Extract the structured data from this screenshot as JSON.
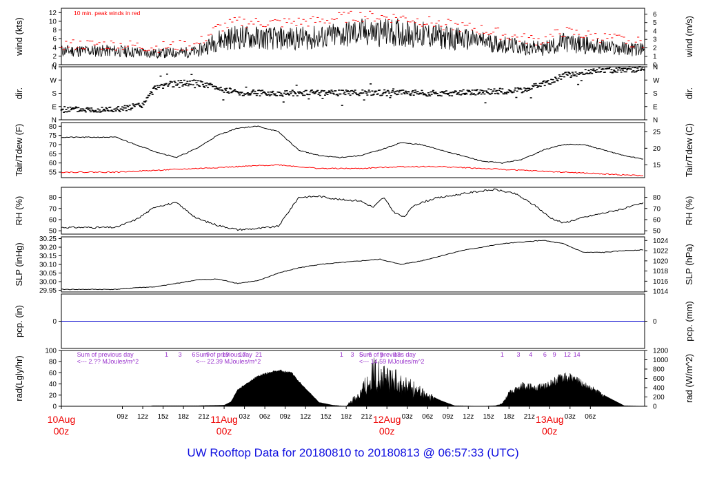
{
  "footer": "UW Rooftop Data for 20180810  to  20180813 @ 06:57:33  (UTC)",
  "colors": {
    "wind": "#000000",
    "peak": "#ff0000",
    "tdew": "#ff0000",
    "pcp": "#0000cc",
    "note": "#9933cc",
    "date": "#ee0000"
  },
  "chart_data": [
    {
      "type": "line",
      "ylabel": "wind (kts)",
      "ylabel_right": "wind (m/s)",
      "annotation": "10 min. peak winds in red",
      "ylim": [
        0,
        13
      ],
      "yticks": [
        0,
        2,
        4,
        6,
        8,
        10,
        12
      ],
      "yticks_right": [
        0,
        1,
        2,
        3,
        4,
        5,
        6
      ],
      "series": [
        {
          "name": "wind",
          "x": [
            0,
            6,
            12,
            15,
            18,
            24,
            30,
            33,
            36,
            42,
            48,
            54,
            60,
            63,
            66,
            72,
            78
          ],
          "values": [
            3.2,
            2.6,
            3.0,
            5.6,
            6.4,
            6.0,
            6.2,
            6.8,
            7.4,
            7.4,
            6.4,
            5.4,
            4.0,
            3.7,
            5.1,
            4.0,
            3.4
          ]
        },
        {
          "name": "10 min. peak winds",
          "x": [
            0,
            6,
            12,
            15,
            18,
            24,
            30,
            33,
            36,
            42,
            48,
            54,
            60,
            63,
            66,
            72,
            78
          ],
          "values": [
            4.6,
            4.0,
            4.6,
            8.4,
            9.8,
            9.6,
            10.0,
            10.8,
            11.2,
            10.8,
            9.4,
            8.0,
            6.0,
            5.6,
            7.6,
            6.2,
            5.0
          ]
        }
      ]
    },
    {
      "type": "scatter",
      "ylabel": "dir.",
      "ylabel_right": "dir.",
      "yticks": [
        "N",
        "W",
        "S",
        "E",
        "N"
      ],
      "series": [
        {
          "name": "direction (deg)",
          "x": [
            0,
            2,
            4,
            6,
            8,
            10,
            12,
            18,
            24,
            36,
            48,
            60,
            62,
            64,
            66,
            70,
            74,
            78
          ],
          "values": [
            70,
            85,
            100,
            225,
            240,
            250,
            250,
            185,
            180,
            185,
            180,
            200,
            230,
            260,
            300,
            330,
            340,
            345
          ]
        }
      ]
    },
    {
      "type": "line",
      "ylabel": "Tair/Tdew (F)",
      "ylabel_right": "Tair/Tdew (C)",
      "ylim": [
        52,
        82
      ],
      "yticks": [
        55,
        60,
        65,
        70,
        75,
        80
      ],
      "yticks_right": [
        15,
        20,
        25
      ],
      "series": [
        {
          "name": "Tair",
          "x": [
            0,
            3,
            6,
            9,
            12,
            15,
            18,
            21,
            24,
            27,
            30,
            33,
            36,
            39,
            42,
            45,
            48,
            51,
            54,
            57,
            60,
            63,
            66,
            69,
            72,
            75,
            78
          ],
          "values": [
            74,
            70,
            66,
            63,
            68,
            75,
            79,
            80,
            77,
            67,
            64,
            63,
            64,
            67,
            71,
            70,
            67,
            64,
            61,
            60,
            62,
            67,
            70,
            70,
            67,
            64,
            62
          ]
        },
        {
          "name": "Tdew",
          "x": [
            0,
            6,
            12,
            18,
            24,
            30,
            36,
            42,
            48,
            54,
            60,
            66,
            72,
            78
          ],
          "values": [
            55,
            56,
            57,
            58,
            59,
            57,
            57,
            58,
            58,
            57,
            56,
            55,
            54,
            53
          ]
        }
      ]
    },
    {
      "type": "line",
      "ylabel": "RH (%)",
      "ylabel_right": "RH (%)",
      "ylim": [
        47,
        89
      ],
      "yticks": [
        50,
        60,
        70,
        80
      ],
      "yticks_right": [
        50,
        60,
        70,
        80
      ],
      "series": [
        {
          "name": "RH",
          "x": [
            0,
            3,
            6,
            9,
            12,
            15,
            18,
            21,
            24,
            27,
            30,
            33,
            36,
            38,
            39.5,
            41,
            42.5,
            44,
            47,
            50,
            53,
            56,
            59,
            62,
            64,
            66,
            69,
            72,
            75,
            78
          ],
          "values": [
            53,
            60,
            72,
            75,
            61,
            55,
            51,
            52,
            54,
            80,
            81,
            78,
            77,
            71,
            80,
            67,
            62,
            73,
            79,
            82,
            85,
            87,
            83,
            72,
            62,
            57,
            62,
            66,
            70,
            75
          ]
        }
      ]
    },
    {
      "type": "line",
      "ylabel": "SLP (inHg)",
      "ylabel_right": "SLP (hPa)",
      "ylim": [
        29.94,
        30.26
      ],
      "yticks": [
        29.95,
        30.0,
        30.05,
        30.1,
        30.15,
        30.2,
        30.25
      ],
      "yticks_right": [
        1014,
        1016,
        1018,
        1020,
        1022,
        1024
      ],
      "series": [
        {
          "name": "SLP",
          "x": [
            0,
            3,
            6,
            9,
            12,
            15,
            18,
            21,
            24,
            27,
            30,
            33,
            36,
            39,
            42,
            45,
            48,
            51,
            54,
            57,
            60,
            63,
            66,
            69,
            72,
            75,
            78
          ],
          "values": [
            29.955,
            29.965,
            29.97,
            29.99,
            30.01,
            30.015,
            29.99,
            30.005,
            30.05,
            30.08,
            30.1,
            30.11,
            30.12,
            30.13,
            30.1,
            30.12,
            30.15,
            30.18,
            30.2,
            30.22,
            30.23,
            30.24,
            30.22,
            30.17,
            30.17,
            30.18,
            30.185
          ]
        }
      ]
    },
    {
      "type": "line",
      "ylabel": "pcp. (in)",
      "ylabel_right": "pcp. (mm)",
      "yticks": [
        0
      ],
      "yticks_right": [
        0
      ],
      "series": [
        {
          "name": "pcp",
          "x": [
            0,
            78
          ],
          "values": [
            0,
            0
          ]
        }
      ]
    },
    {
      "type": "area",
      "ylabel": "rad(Lgly/hr)",
      "ylabel_right": "rad (W/m^2)",
      "ylim": [
        0,
        100
      ],
      "yticks": [
        0,
        20,
        40,
        60,
        80,
        100
      ],
      "yticks_right": [
        0,
        200,
        400,
        600,
        800,
        1000,
        1200
      ],
      "annotations": [
        {
          "line1": "Sum of previous day",
          "line2": "<--- 2.?? MJoules/m^2"
        },
        {
          "line1": "Sum of previous day",
          "line2": "<--- 22.39 MJoules/m^2"
        },
        {
          "line1": "Sum of previous day",
          "line2": "<--- 14.59 MJoules/m^2"
        }
      ],
      "hour_marks": [
        {
          "text": "1",
          "x": 7.5
        },
        {
          "text": "3",
          "x": 9.5
        },
        {
          "text": "6",
          "x": 11.5
        },
        {
          "text": "9",
          "x": 13.6
        },
        {
          "text": "13",
          "x": 16.2
        },
        {
          "text": "17",
          "x": 18.7
        },
        {
          "text": "21",
          "x": 21.1
        },
        {
          "text": "1",
          "x": 33.3
        },
        {
          "text": "3",
          "x": 34.9
        },
        {
          "text": "5",
          "x": 36.2
        },
        {
          "text": "6",
          "x": 37.5
        },
        {
          "text": "9",
          "x": 39.2
        },
        {
          "text": "13",
          "x": 41.5
        },
        {
          "text": "1",
          "x": 57.0
        },
        {
          "text": "3",
          "x": 59.4
        },
        {
          "text": "4",
          "x": 61.2
        },
        {
          "text": "6",
          "x": 63.3
        },
        {
          "text": "9",
          "x": 64.7
        },
        {
          "text": "12",
          "x": 66.6
        },
        {
          "text": "14",
          "x": 68.0
        }
      ],
      "series": [
        {
          "name": "radiation",
          "x": [
            0,
            5,
            5.5,
            12,
            16,
            17,
            18,
            21,
            24,
            26,
            27,
            30,
            32,
            33,
            34,
            36,
            38,
            40,
            42,
            45,
            48,
            50,
            54,
            56,
            57,
            58,
            60,
            62,
            64,
            66,
            68,
            70,
            72,
            75,
            78
          ],
          "values": [
            0,
            0,
            1,
            1,
            2,
            8,
            30,
            55,
            65,
            60,
            45,
            7,
            2,
            1,
            0,
            28,
            70,
            60,
            50,
            28,
            10,
            1,
            0,
            1,
            5,
            25,
            40,
            35,
            42,
            58,
            50,
            35,
            20,
            1,
            0
          ]
        }
      ]
    }
  ],
  "time_axis": {
    "hours": [
      "09z",
      "12z",
      "15z",
      "18z",
      "21z",
      "03z",
      "06z",
      "09z",
      "12z",
      "15z",
      "18z",
      "21z",
      "03z",
      "06z",
      "09z",
      "12z",
      "15z",
      "18z",
      "21z",
      "03z",
      "06z"
    ],
    "hour_x": [
      1,
      4,
      7,
      10,
      13,
      19,
      22,
      25,
      28,
      31,
      34,
      37,
      43,
      46,
      49,
      52,
      55,
      58,
      61,
      67,
      70
    ],
    "days": [
      {
        "date": "10Aug",
        "time": "00z",
        "x": -8
      },
      {
        "date": "11Aug",
        "time": "00z",
        "x": 16
      },
      {
        "date": "12Aug",
        "time": "00z",
        "x": 40
      },
      {
        "date": "13Aug",
        "time": "00z",
        "x": 64
      }
    ]
  }
}
